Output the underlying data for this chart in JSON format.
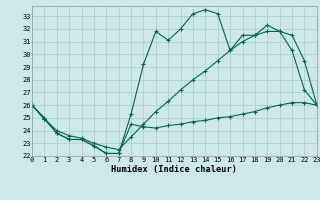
{
  "xlabel": "Humidex (Indice chaleur)",
  "bg_color": "#cce8e8",
  "grid_color": "#aacccc",
  "line_color": "#006655",
  "xlim": [
    0,
    23
  ],
  "ylim": [
    22,
    33.8
  ],
  "yticks": [
    22,
    23,
    24,
    25,
    26,
    27,
    28,
    29,
    30,
    31,
    32,
    33
  ],
  "xticks": [
    0,
    1,
    2,
    3,
    4,
    5,
    6,
    7,
    8,
    9,
    10,
    11,
    12,
    13,
    14,
    15,
    16,
    17,
    18,
    19,
    20,
    21,
    22,
    23
  ],
  "line1_x": [
    0,
    1,
    2,
    3,
    4,
    5,
    6,
    7,
    8,
    9,
    10,
    11,
    12,
    13,
    14,
    15,
    16,
    17,
    18,
    19,
    20,
    21,
    22,
    23
  ],
  "line1_y": [
    26.0,
    25.0,
    23.8,
    23.3,
    23.3,
    22.8,
    22.2,
    22.2,
    25.3,
    29.2,
    31.8,
    31.1,
    32.0,
    33.2,
    33.5,
    33.2,
    30.3,
    31.5,
    31.5,
    32.3,
    31.8,
    30.3,
    27.2,
    26.0
  ],
  "line2_x": [
    0,
    1,
    2,
    3,
    4,
    5,
    6,
    7,
    8,
    9,
    10,
    11,
    12,
    13,
    14,
    15,
    16,
    17,
    18,
    19,
    20,
    21,
    22,
    23
  ],
  "line2_y": [
    26.0,
    24.9,
    24.0,
    23.6,
    23.4,
    23.0,
    22.7,
    22.5,
    23.5,
    24.5,
    25.5,
    26.3,
    27.2,
    28.0,
    28.7,
    29.5,
    30.3,
    31.0,
    31.5,
    31.8,
    31.8,
    31.5,
    29.5,
    26.0
  ],
  "line3_x": [
    0,
    1,
    2,
    3,
    4,
    5,
    6,
    7,
    8,
    9,
    10,
    11,
    12,
    13,
    14,
    15,
    16,
    17,
    18,
    19,
    20,
    21,
    22,
    23
  ],
  "line3_y": [
    26.0,
    24.9,
    23.8,
    23.3,
    23.3,
    22.8,
    22.2,
    22.2,
    24.5,
    24.3,
    24.2,
    24.4,
    24.5,
    24.7,
    24.8,
    25.0,
    25.1,
    25.3,
    25.5,
    25.8,
    26.0,
    26.2,
    26.2,
    26.0
  ]
}
